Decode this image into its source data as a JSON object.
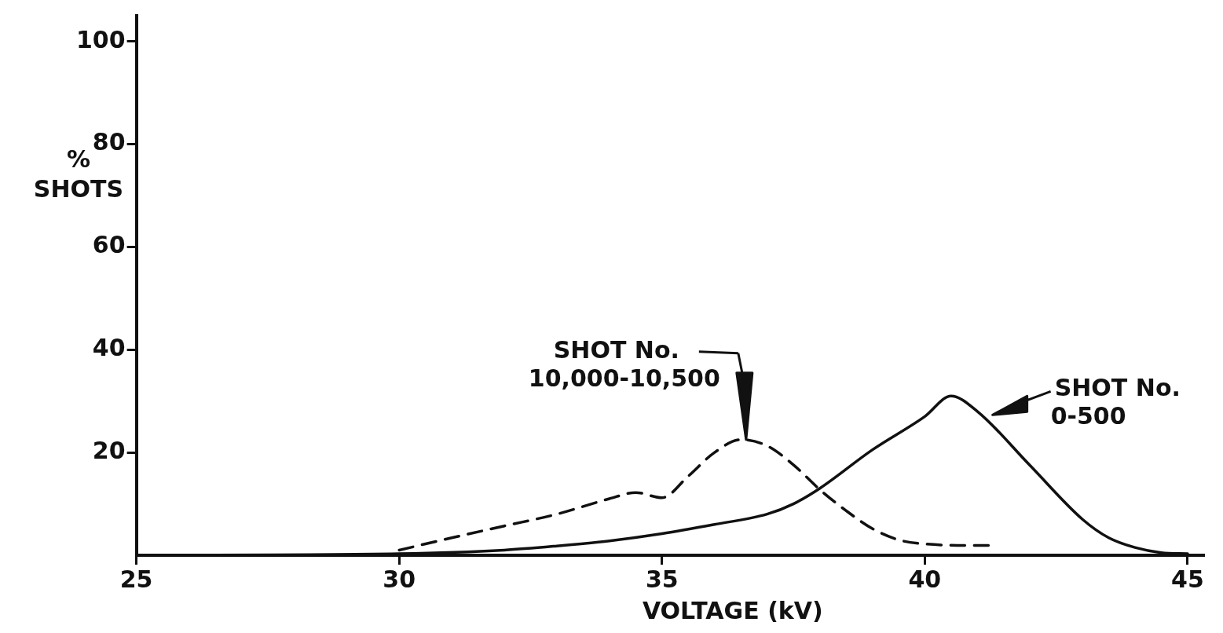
{
  "chart_data": {
    "type": "line",
    "xlabel": "VOLTAGE (kV)",
    "ylabel": "%\nSHOTS",
    "xlim": [
      25,
      45.3
    ],
    "ylim": [
      0,
      105
    ],
    "xticks": [
      25,
      30,
      35,
      40,
      45
    ],
    "yticks": [
      20,
      40,
      60,
      80,
      100
    ],
    "grid": false,
    "legend": false,
    "marker": "none",
    "series": [
      {
        "color": "#111111",
        "line_style": "solid",
        "x": [
          25,
          30,
          32,
          33,
          34,
          35,
          36,
          37,
          37.5,
          38,
          39,
          40,
          40.5,
          41,
          42,
          43,
          43.5,
          44,
          44.5,
          45
        ],
        "values": [
          0,
          0.3,
          1,
          1.8,
          2.8,
          4.2,
          6,
          8,
          10,
          13,
          20.5,
          27,
          31,
          28,
          17.5,
          7,
          3.4,
          1.5,
          0.5,
          0.3
        ]
      },
      {
        "color": "#111111",
        "line_style": "dashed",
        "x": [
          30,
          31,
          32,
          33,
          34,
          34.5,
          35,
          35.5,
          36,
          36.5,
          37,
          37.5,
          38,
          38.5,
          39,
          39.5,
          40,
          41,
          41.3
        ],
        "values": [
          1,
          3.4,
          5.7,
          8,
          11,
          12.2,
          11.2,
          15.4,
          20,
          22.5,
          21.3,
          17.6,
          12.8,
          8.7,
          5.2,
          3,
          2.2,
          1.9,
          1.9
        ]
      }
    ],
    "annotations": [
      {
        "text": "SHOT No.\n10,000-10,500",
        "x": 36.6,
        "y": 22.5
      },
      {
        "text": "SHOT No.\n0-500",
        "x": 41.2,
        "y": 27
      }
    ]
  }
}
